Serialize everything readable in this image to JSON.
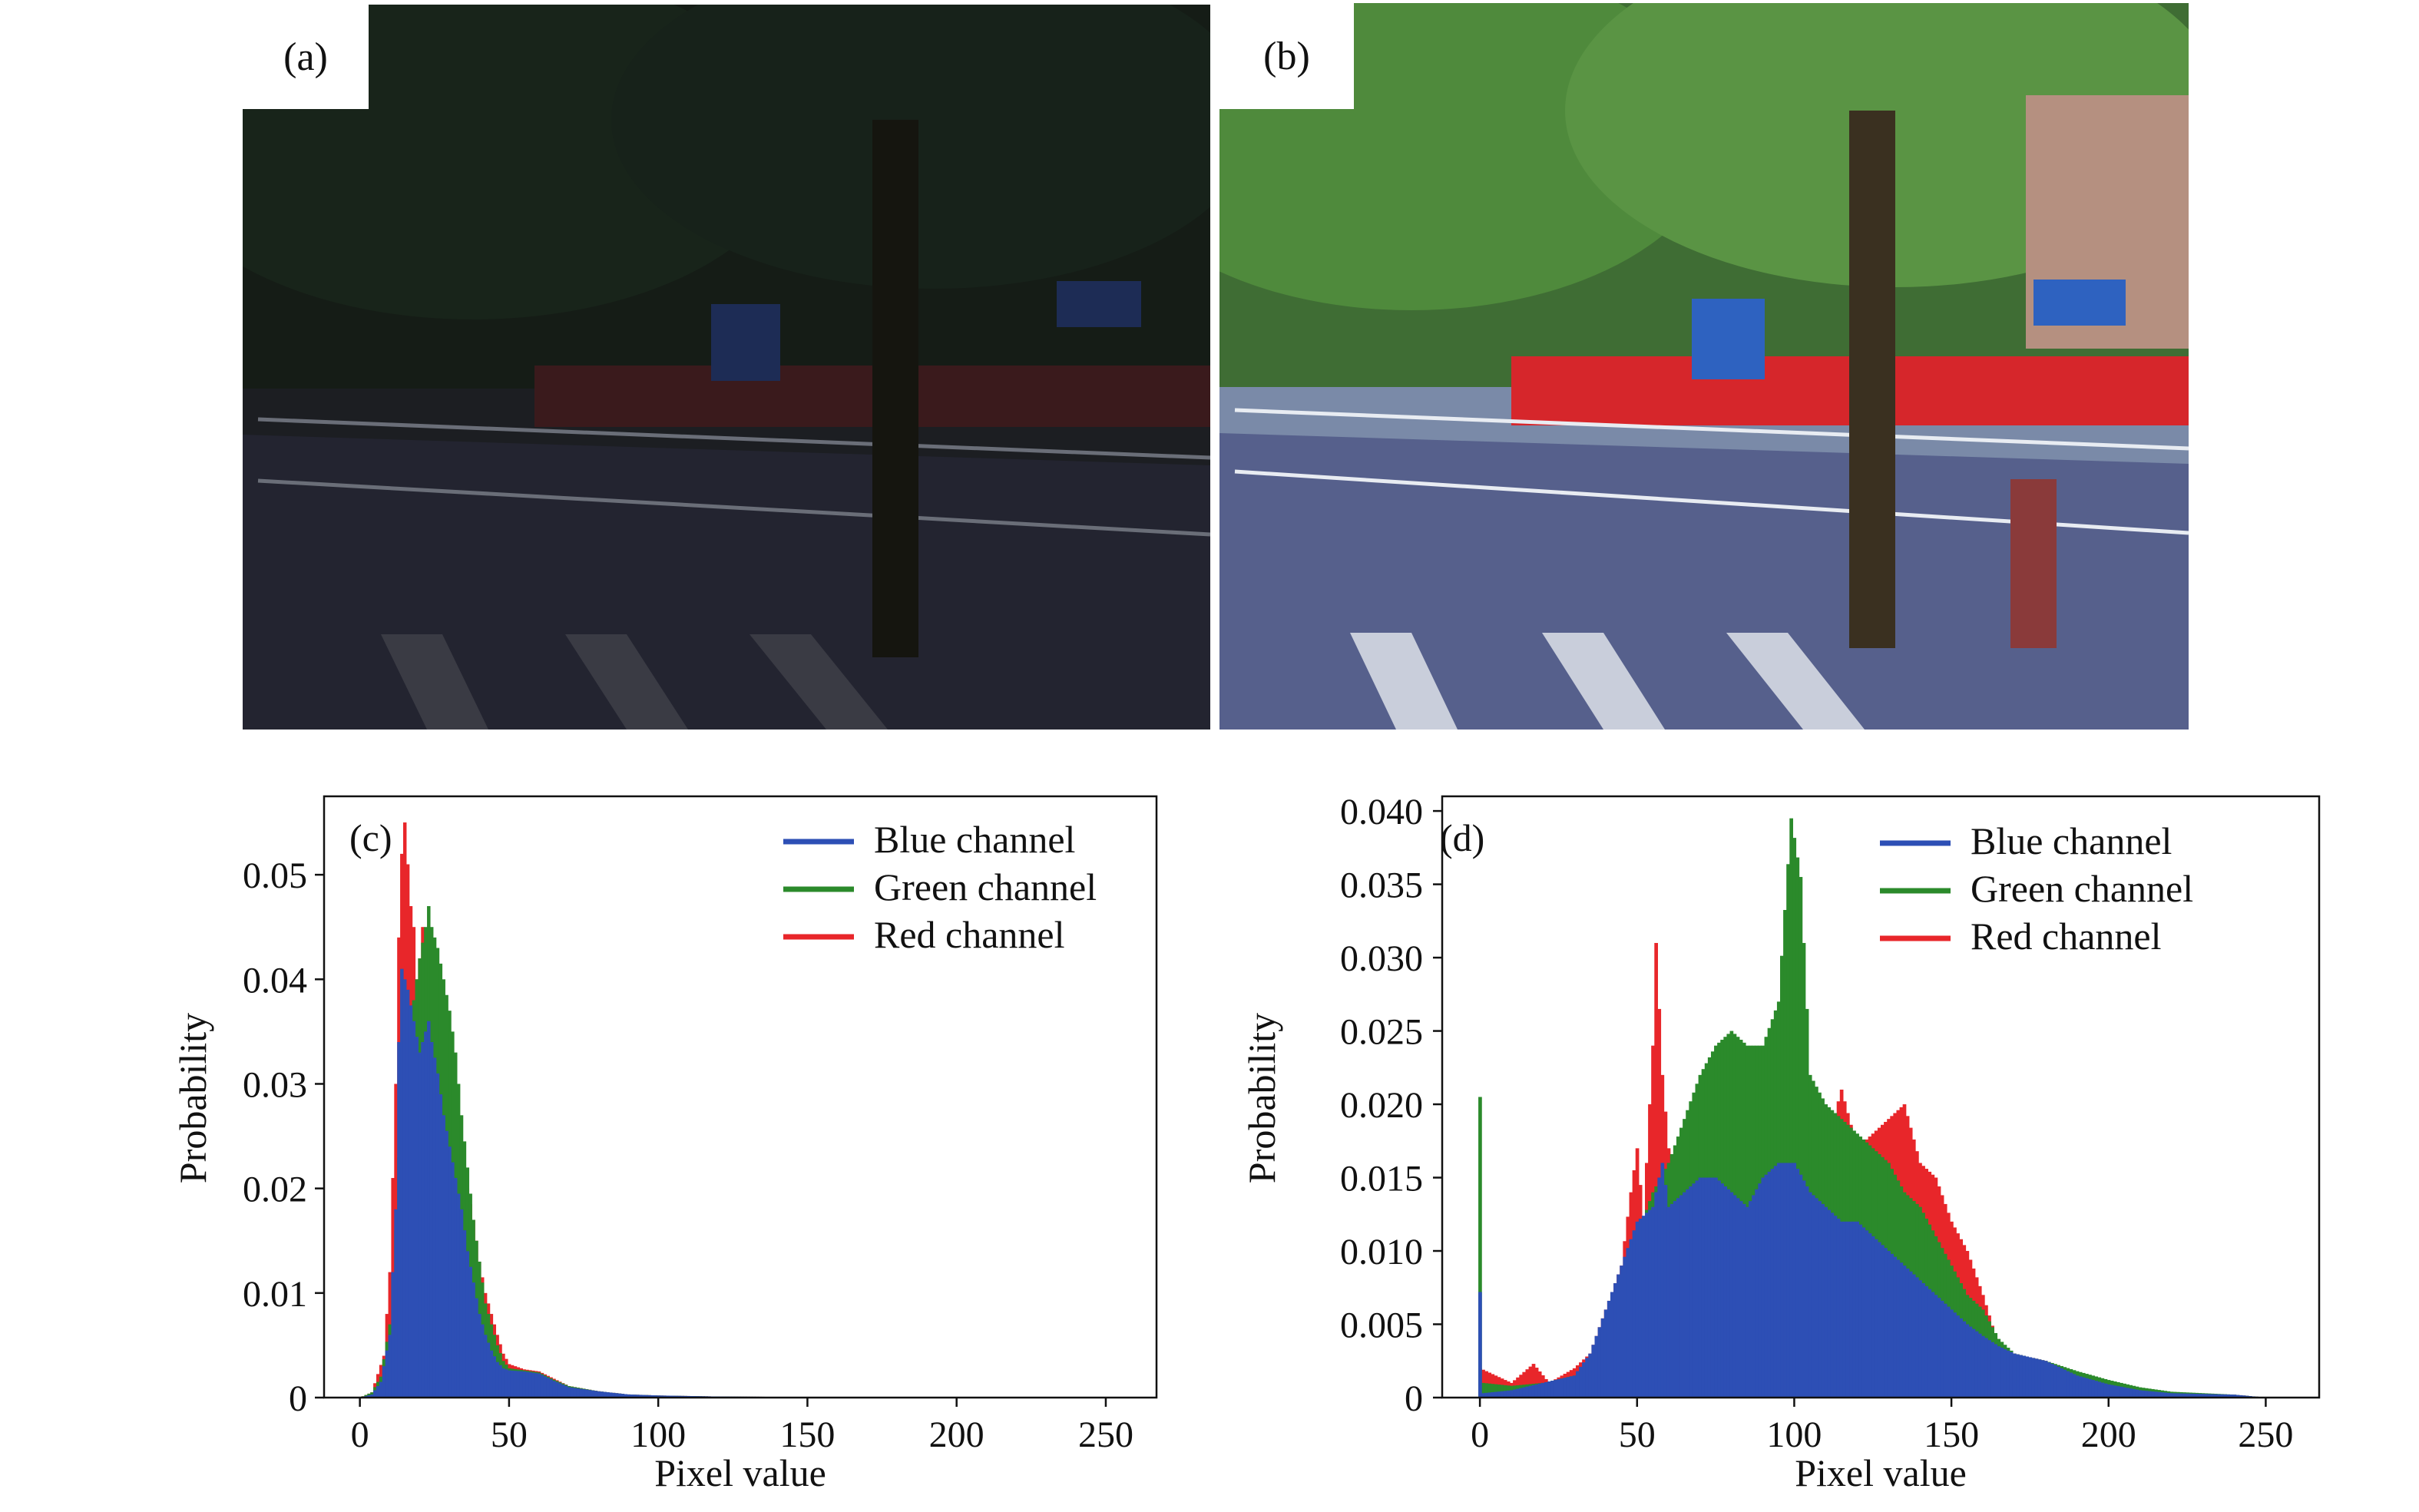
{
  "figure": {
    "panel_a_label": "(a)",
    "panel_b_label": "(b)"
  },
  "colors": {
    "blue": "#2d4fb5",
    "green": "#2b8a2b",
    "red": "#e8262a"
  },
  "chart_data": [
    {
      "panel": "(c)",
      "type": "bar",
      "xlabel": "Pixel value",
      "ylabel": "Probability",
      "xlim": [
        -12,
        267
      ],
      "ylim": [
        0,
        0.0575
      ],
      "xticks": [
        0,
        50,
        100,
        150,
        200,
        250
      ],
      "yticks": [
        0,
        0.01,
        0.02,
        0.03,
        0.04,
        0.05
      ],
      "ytick_labels": [
        "0",
        "0.01",
        "0.02",
        "0.03",
        "0.04",
        "0.05"
      ],
      "legend_position": "top-right",
      "series": [
        {
          "name": "Red channel",
          "color": "#e8262a",
          "points": [
            [
              0,
              0
            ],
            [
              4,
              0.0005
            ],
            [
              8,
              0.004
            ],
            [
              10,
              0.012
            ],
            [
              12,
              0.03
            ],
            [
              13,
              0.044
            ],
            [
              14,
              0.052
            ],
            [
              15,
              0.055
            ],
            [
              16,
              0.051
            ],
            [
              17,
              0.047
            ],
            [
              18,
              0.045
            ],
            [
              19,
              0.04
            ],
            [
              20,
              0.042
            ],
            [
              21,
              0.045
            ],
            [
              22,
              0.044
            ],
            [
              24,
              0.042
            ],
            [
              26,
              0.038
            ],
            [
              28,
              0.034
            ],
            [
              30,
              0.03
            ],
            [
              32,
              0.027
            ],
            [
              34,
              0.023
            ],
            [
              36,
              0.02
            ],
            [
              38,
              0.017
            ],
            [
              40,
              0.013
            ],
            [
              42,
              0.01
            ],
            [
              44,
              0.008
            ],
            [
              46,
              0.006
            ],
            [
              48,
              0.0042
            ],
            [
              50,
              0.0032
            ],
            [
              55,
              0.0027
            ],
            [
              60,
              0.0025
            ],
            [
              65,
              0.0018
            ],
            [
              70,
              0.0011
            ],
            [
              80,
              0.0006
            ],
            [
              90,
              0.0003
            ],
            [
              100,
              0.0002
            ],
            [
              120,
              0.0001
            ],
            [
              150,
              5e-05
            ],
            [
              200,
              0
            ],
            [
              255,
              0
            ]
          ]
        },
        {
          "name": "Green channel",
          "color": "#2b8a2b",
          "points": [
            [
              0,
              0
            ],
            [
              4,
              0.0005
            ],
            [
              7,
              0.002
            ],
            [
              10,
              0.007
            ],
            [
              12,
              0.016
            ],
            [
              14,
              0.03
            ],
            [
              16,
              0.036
            ],
            [
              18,
              0.038
            ],
            [
              20,
              0.042
            ],
            [
              22,
              0.045
            ],
            [
              23,
              0.047
            ],
            [
              24,
              0.045
            ],
            [
              26,
              0.043
            ],
            [
              28,
              0.04
            ],
            [
              30,
              0.037
            ],
            [
              32,
              0.033
            ],
            [
              34,
              0.027
            ],
            [
              36,
              0.022
            ],
            [
              38,
              0.017
            ],
            [
              40,
              0.013
            ],
            [
              42,
              0.009
            ],
            [
              44,
              0.007
            ],
            [
              46,
              0.005
            ],
            [
              48,
              0.0035
            ],
            [
              50,
              0.0028
            ],
            [
              55,
              0.0026
            ],
            [
              60,
              0.0024
            ],
            [
              65,
              0.0017
            ],
            [
              70,
              0.0011
            ],
            [
              80,
              0.0006
            ],
            [
              90,
              0.0003
            ],
            [
              100,
              0.0002
            ],
            [
              120,
              0.0001
            ],
            [
              150,
              5e-05
            ],
            [
              200,
              0
            ],
            [
              255,
              0
            ]
          ]
        },
        {
          "name": "Blue channel",
          "color": "#2d4fb5",
          "points": [
            [
              0,
              0
            ],
            [
              4,
              0.0003
            ],
            [
              7,
              0.0015
            ],
            [
              10,
              0.006
            ],
            [
              12,
              0.018
            ],
            [
              13,
              0.034
            ],
            [
              14,
              0.041
            ],
            [
              16,
              0.039
            ],
            [
              18,
              0.036
            ],
            [
              20,
              0.033
            ],
            [
              22,
              0.035
            ],
            [
              23,
              0.036
            ],
            [
              24,
              0.034
            ],
            [
              26,
              0.031
            ],
            [
              28,
              0.027
            ],
            [
              30,
              0.024
            ],
            [
              32,
              0.021
            ],
            [
              34,
              0.018
            ],
            [
              36,
              0.014
            ],
            [
              38,
              0.011
            ],
            [
              40,
              0.008
            ],
            [
              42,
              0.006
            ],
            [
              44,
              0.0045
            ],
            [
              46,
              0.0034
            ],
            [
              48,
              0.0028
            ],
            [
              50,
              0.0026
            ],
            [
              55,
              0.0025
            ],
            [
              60,
              0.0023
            ],
            [
              65,
              0.0016
            ],
            [
              70,
              0.001
            ],
            [
              80,
              0.0006
            ],
            [
              90,
              0.0003
            ],
            [
              100,
              0.0002
            ],
            [
              120,
              0.0001
            ],
            [
              150,
              5e-05
            ],
            [
              200,
              0
            ],
            [
              255,
              0
            ]
          ]
        }
      ]
    },
    {
      "panel": "(d)",
      "type": "bar",
      "xlabel": "Pixel value",
      "ylabel": "Probability",
      "xlim": [
        -12,
        267
      ],
      "ylim": [
        0,
        0.041
      ],
      "xticks": [
        0,
        50,
        100,
        150,
        200,
        250
      ],
      "yticks": [
        0,
        0.005,
        0.01,
        0.015,
        0.02,
        0.025,
        0.03,
        0.035,
        0.04
      ],
      "ytick_labels": [
        "0",
        "0.005",
        "0.010",
        "0.015",
        "0.020",
        "0.025",
        "0.030",
        "0.035",
        "0.040"
      ],
      "legend_position": "top-right",
      "series": [
        {
          "name": "Red channel",
          "color": "#e8262a",
          "points": [
            [
              0,
              0.002
            ],
            [
              10,
              0.001
            ],
            [
              17,
              0.0023
            ],
            [
              22,
              0.001
            ],
            [
              30,
              0.002
            ],
            [
              35,
              0.003
            ],
            [
              40,
              0.006
            ],
            [
              45,
              0.009
            ],
            [
              48,
              0.014
            ],
            [
              50,
              0.017
            ],
            [
              52,
              0.012
            ],
            [
              55,
              0.024
            ],
            [
              56,
              0.031
            ],
            [
              58,
              0.022
            ],
            [
              60,
              0.017
            ],
            [
              65,
              0.015
            ],
            [
              70,
              0.018
            ],
            [
              75,
              0.02
            ],
            [
              80,
              0.016
            ],
            [
              85,
              0.017
            ],
            [
              90,
              0.013
            ],
            [
              95,
              0.018
            ],
            [
              100,
              0.017
            ],
            [
              105,
              0.013
            ],
            [
              110,
              0.017
            ],
            [
              115,
              0.021
            ],
            [
              120,
              0.017
            ],
            [
              125,
              0.018
            ],
            [
              130,
              0.019
            ],
            [
              135,
              0.02
            ],
            [
              140,
              0.016
            ],
            [
              145,
              0.015
            ],
            [
              150,
              0.012
            ],
            [
              155,
              0.01
            ],
            [
              160,
              0.007
            ],
            [
              165,
              0.0035
            ],
            [
              170,
              0.003
            ],
            [
              180,
              0.0025
            ],
            [
              190,
              0.0015
            ],
            [
              200,
              0.0009
            ],
            [
              210,
              0.0005
            ],
            [
              220,
              0.0003
            ],
            [
              240,
              0.0002
            ],
            [
              250,
              0
            ]
          ]
        },
        {
          "name": "Green channel",
          "color": "#2b8a2b",
          "points": [
            [
              0,
              0.0205
            ],
            [
              1,
              0.001
            ],
            [
              10,
              0.0008
            ],
            [
              20,
              0.001
            ],
            [
              30,
              0.0015
            ],
            [
              35,
              0.002
            ],
            [
              40,
              0.005
            ],
            [
              45,
              0.008
            ],
            [
              50,
              0.011
            ],
            [
              55,
              0.014
            ],
            [
              60,
              0.016
            ],
            [
              65,
              0.019
            ],
            [
              70,
              0.022
            ],
            [
              75,
              0.024
            ],
            [
              80,
              0.025
            ],
            [
              85,
              0.024
            ],
            [
              90,
              0.024
            ],
            [
              95,
              0.027
            ],
            [
              99,
              0.0395
            ],
            [
              102,
              0.0355
            ],
            [
              105,
              0.022
            ],
            [
              110,
              0.02
            ],
            [
              115,
              0.019
            ],
            [
              120,
              0.018
            ],
            [
              125,
              0.017
            ],
            [
              130,
              0.016
            ],
            [
              135,
              0.014
            ],
            [
              140,
              0.013
            ],
            [
              145,
              0.011
            ],
            [
              150,
              0.009
            ],
            [
              155,
              0.007
            ],
            [
              160,
              0.006
            ],
            [
              165,
              0.004
            ],
            [
              170,
              0.003
            ],
            [
              180,
              0.0025
            ],
            [
              190,
              0.0018
            ],
            [
              200,
              0.0012
            ],
            [
              210,
              0.0007
            ],
            [
              220,
              0.0004
            ],
            [
              240,
              0.0002
            ],
            [
              250,
              0
            ]
          ]
        },
        {
          "name": "Blue channel",
          "color": "#2d4fb5",
          "points": [
            [
              0,
              0.0072
            ],
            [
              1,
              0.0003
            ],
            [
              10,
              0.0005
            ],
            [
              20,
              0.001
            ],
            [
              30,
              0.0015
            ],
            [
              35,
              0.003
            ],
            [
              40,
              0.006
            ],
            [
              45,
              0.009
            ],
            [
              50,
              0.012
            ],
            [
              55,
              0.013
            ],
            [
              58,
              0.016
            ],
            [
              60,
              0.013
            ],
            [
              65,
              0.014
            ],
            [
              70,
              0.015
            ],
            [
              75,
              0.015
            ],
            [
              80,
              0.014
            ],
            [
              85,
              0.013
            ],
            [
              90,
              0.015
            ],
            [
              95,
              0.016
            ],
            [
              100,
              0.016
            ],
            [
              105,
              0.014
            ],
            [
              110,
              0.013
            ],
            [
              115,
              0.012
            ],
            [
              120,
              0.012
            ],
            [
              125,
              0.011
            ],
            [
              130,
              0.01
            ],
            [
              135,
              0.009
            ],
            [
              140,
              0.008
            ],
            [
              145,
              0.007
            ],
            [
              150,
              0.006
            ],
            [
              155,
              0.005
            ],
            [
              160,
              0.0042
            ],
            [
              165,
              0.0035
            ],
            [
              170,
              0.003
            ],
            [
              180,
              0.0025
            ],
            [
              190,
              0.0015
            ],
            [
              200,
              0.0009
            ],
            [
              210,
              0.0005
            ],
            [
              220,
              0.0003
            ],
            [
              240,
              0.0002
            ],
            [
              250,
              0
            ]
          ]
        }
      ]
    }
  ]
}
